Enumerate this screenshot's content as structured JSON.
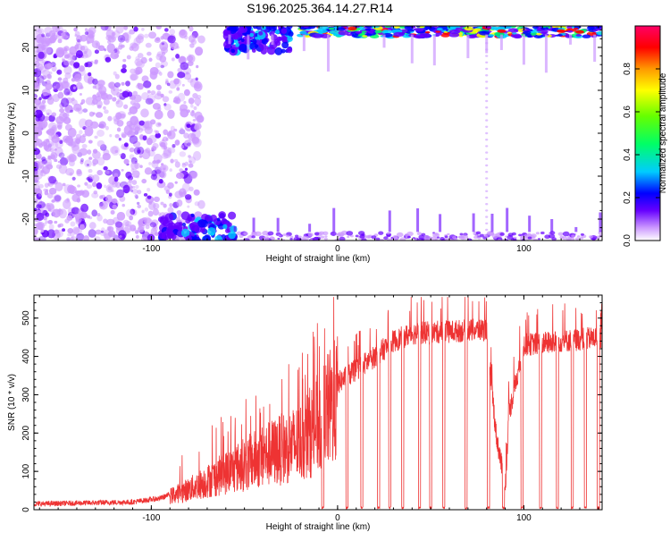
{
  "title": "S196.2025.364.14.27.R14",
  "chart_data": [
    {
      "type": "heatmap",
      "xlabel": "Height of straight line (km)",
      "ylabel": "Frequency (Hz)",
      "xlim": [
        -163,
        142
      ],
      "ylim": [
        -25,
        25
      ],
      "x_ticks": [
        -100,
        0,
        100
      ],
      "y_ticks": [
        -20,
        -10,
        0,
        10,
        20
      ],
      "colorbar": {
        "label": "Normalized spectral amplitude",
        "range": [
          0,
          1
        ],
        "ticks": [
          0.0,
          0.2,
          0.4,
          0.6,
          0.8
        ],
        "colors": [
          "#ffffff",
          "#cc99ff",
          "#6600ff",
          "#0000ff",
          "#00ccff",
          "#00ff66",
          "#66ff00",
          "#ffff00",
          "#ff9900",
          "#ff0000",
          "#ff0066"
        ]
      },
      "description_regions": {
        "scattered_noise_x_range": [
          -163,
          -80
        ],
        "top_edge_band_y": [
          22,
          25
        ],
        "bottom_edge_band_y": [
          -25,
          -22
        ],
        "vertical_streak_x": [
          -5,
          80
        ]
      }
    },
    {
      "type": "line",
      "xlabel": "Height of straight line (km)",
      "ylabel": "SNR (10 * v/v)",
      "xlim": [
        -163,
        142
      ],
      "ylim": [
        0,
        560
      ],
      "x_ticks": [
        -100,
        0,
        100
      ],
      "y_ticks": [
        0,
        100,
        200,
        300,
        400,
        500
      ],
      "color": "#ee3333",
      "envelope": [
        {
          "x": -163,
          "y": 15
        },
        {
          "x": -110,
          "y": 20
        },
        {
          "x": -95,
          "y": 30
        },
        {
          "x": -80,
          "y": 60
        },
        {
          "x": -60,
          "y": 110
        },
        {
          "x": -40,
          "y": 160
        },
        {
          "x": -20,
          "y": 200
        },
        {
          "x": -10,
          "y": 260
        },
        {
          "x": 0,
          "y": 330
        },
        {
          "x": 20,
          "y": 400
        },
        {
          "x": 30,
          "y": 440
        },
        {
          "x": 40,
          "y": 460
        },
        {
          "x": 80,
          "y": 470
        },
        {
          "x": 85,
          "y": 200
        },
        {
          "x": 90,
          "y": 60
        },
        {
          "x": 92,
          "y": 250
        },
        {
          "x": 100,
          "y": 430
        },
        {
          "x": 142,
          "y": 450
        }
      ],
      "dropouts_x": [
        -8,
        5,
        13,
        22,
        28,
        35,
        44,
        50,
        57,
        69,
        81,
        89,
        99,
        109,
        118,
        126,
        133,
        140
      ]
    }
  ]
}
